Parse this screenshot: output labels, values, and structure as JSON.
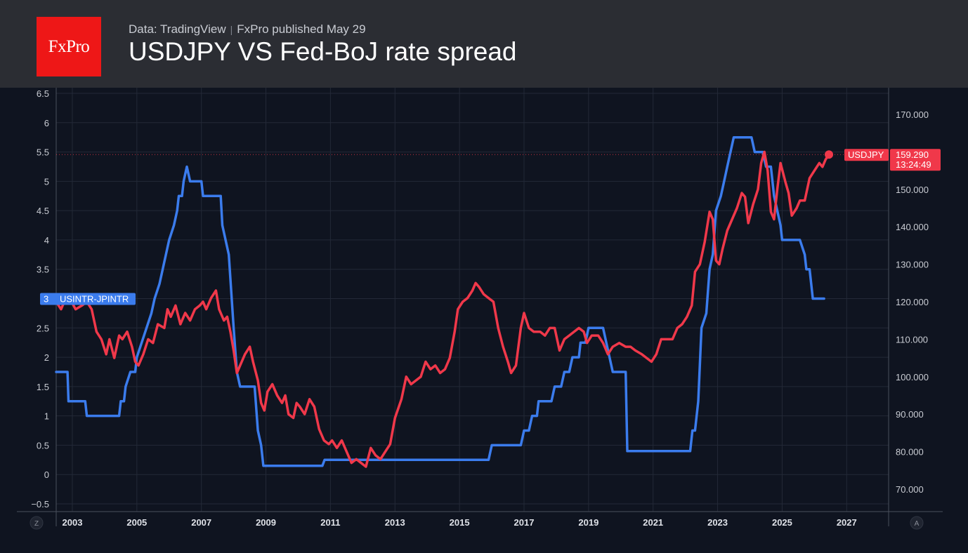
{
  "header": {
    "logo_text": "FxPro",
    "source": "Data: TradingView",
    "published": "FxPro published May 29",
    "title": "USDJPY VS Fed-BoJ rate spread"
  },
  "corner_buttons": {
    "left": "Z",
    "right": "A"
  },
  "colors": {
    "spread": "#3b7ced",
    "usdjpy": "#f0384a",
    "background": "#0f1420",
    "header": "#2b2d33",
    "logo": "#ee1717"
  },
  "chart_data": {
    "type": "line",
    "title": "USDJPY VS Fed-BoJ rate spread",
    "grid": true,
    "x_ticks": [
      "2003",
      "2005",
      "2007",
      "2009",
      "2011",
      "2013",
      "2015",
      "2017",
      "2019",
      "2021",
      "2023",
      "2025",
      "2027"
    ],
    "xlim": [
      2002.5,
      2028.3
    ],
    "left_axis": {
      "ticks": [
        "6.5",
        "6",
        "5.5",
        "5",
        "4.5",
        "4",
        "3.5",
        "3",
        "2.5",
        "2",
        "1.5",
        "1",
        "0.5",
        "0",
        "−0.5"
      ],
      "range": [
        -0.5,
        6.5
      ]
    },
    "right_axis": {
      "ticks": [
        "170.000",
        "160.000",
        "150.000",
        "140.000",
        "130.000",
        "120.000",
        "110.000",
        "100.000",
        "90.000",
        "80.000",
        "70.000"
      ],
      "range": [
        70,
        170
      ]
    },
    "series": [
      {
        "name": "USINTR-JPINTR",
        "axis": "left",
        "last_label": "3",
        "points": [
          [
            2002.5,
            1.75
          ],
          [
            2002.85,
            1.75
          ],
          [
            2002.88,
            1.25
          ],
          [
            2003.4,
            1.25
          ],
          [
            2003.45,
            1.0
          ],
          [
            2004.45,
            1.0
          ],
          [
            2004.5,
            1.25
          ],
          [
            2004.6,
            1.25
          ],
          [
            2004.65,
            1.5
          ],
          [
            2004.8,
            1.75
          ],
          [
            2004.95,
            1.75
          ],
          [
            2005.0,
            2.0
          ],
          [
            2005.15,
            2.25
          ],
          [
            2005.3,
            2.5
          ],
          [
            2005.45,
            2.75
          ],
          [
            2005.55,
            3.0
          ],
          [
            2005.7,
            3.25
          ],
          [
            2005.8,
            3.5
          ],
          [
            2005.9,
            3.75
          ],
          [
            2006.0,
            4.0
          ],
          [
            2006.15,
            4.25
          ],
          [
            2006.25,
            4.5
          ],
          [
            2006.3,
            4.75
          ],
          [
            2006.4,
            4.75
          ],
          [
            2006.45,
            5.0
          ],
          [
            2006.55,
            5.25
          ],
          [
            2006.65,
            5.0
          ],
          [
            2007.0,
            5.0
          ],
          [
            2007.05,
            4.75
          ],
          [
            2007.6,
            4.75
          ],
          [
            2007.65,
            4.25
          ],
          [
            2007.75,
            4.0
          ],
          [
            2007.85,
            3.75
          ],
          [
            2008.0,
            2.5
          ],
          [
            2008.1,
            1.75
          ],
          [
            2008.2,
            1.5
          ],
          [
            2008.65,
            1.5
          ],
          [
            2008.75,
            0.75
          ],
          [
            2008.85,
            0.5
          ],
          [
            2008.92,
            0.15
          ],
          [
            2010.75,
            0.15
          ],
          [
            2010.82,
            0.25
          ],
          [
            2015.9,
            0.25
          ],
          [
            2016.0,
            0.5
          ],
          [
            2016.9,
            0.5
          ],
          [
            2017.0,
            0.75
          ],
          [
            2017.15,
            0.75
          ],
          [
            2017.25,
            1.0
          ],
          [
            2017.4,
            1.0
          ],
          [
            2017.45,
            1.25
          ],
          [
            2017.85,
            1.25
          ],
          [
            2017.95,
            1.5
          ],
          [
            2018.15,
            1.5
          ],
          [
            2018.25,
            1.75
          ],
          [
            2018.4,
            1.75
          ],
          [
            2018.5,
            2.0
          ],
          [
            2018.7,
            2.0
          ],
          [
            2018.75,
            2.25
          ],
          [
            2018.9,
            2.25
          ],
          [
            2019.0,
            2.5
          ],
          [
            2019.45,
            2.5
          ],
          [
            2019.55,
            2.25
          ],
          [
            2019.65,
            2.0
          ],
          [
            2019.75,
            1.75
          ],
          [
            2020.15,
            1.75
          ],
          [
            2020.2,
            0.4
          ],
          [
            2022.15,
            0.4
          ],
          [
            2022.22,
            0.75
          ],
          [
            2022.3,
            0.75
          ],
          [
            2022.4,
            1.25
          ],
          [
            2022.5,
            2.5
          ],
          [
            2022.65,
            2.75
          ],
          [
            2022.75,
            3.5
          ],
          [
            2022.85,
            3.75
          ],
          [
            2022.95,
            4.5
          ],
          [
            2023.1,
            4.75
          ],
          [
            2023.2,
            5.0
          ],
          [
            2023.3,
            5.25
          ],
          [
            2023.4,
            5.5
          ],
          [
            2023.5,
            5.75
          ],
          [
            2024.05,
            5.75
          ],
          [
            2024.15,
            5.5
          ],
          [
            2024.4,
            5.5
          ],
          [
            2024.5,
            5.25
          ],
          [
            2024.65,
            5.25
          ],
          [
            2024.75,
            4.75
          ],
          [
            2024.85,
            4.5
          ],
          [
            2024.95,
            4.25
          ],
          [
            2025.0,
            4.0
          ],
          [
            2025.55,
            4.0
          ],
          [
            2025.7,
            3.75
          ],
          [
            2025.75,
            3.5
          ],
          [
            2025.85,
            3.5
          ],
          [
            2025.95,
            3.0
          ],
          [
            2026.3,
            3.0
          ]
        ]
      },
      {
        "name": "USDJPY",
        "axis": "right",
        "last_value": "159.290",
        "countdown": "13:24:49",
        "points": [
          [
            2002.5,
            120.0
          ],
          [
            2002.65,
            118.0
          ],
          [
            2002.85,
            122.0
          ],
          [
            2003.1,
            118.0
          ],
          [
            2003.3,
            119.0
          ],
          [
            2003.45,
            120.0
          ],
          [
            2003.6,
            118.0
          ],
          [
            2003.75,
            112.0
          ],
          [
            2003.9,
            110.0
          ],
          [
            2004.05,
            106.0
          ],
          [
            2004.15,
            110.0
          ],
          [
            2004.3,
            105.0
          ],
          [
            2004.45,
            111.0
          ],
          [
            2004.55,
            110.0
          ],
          [
            2004.7,
            112.0
          ],
          [
            2004.85,
            108.0
          ],
          [
            2004.95,
            104.0
          ],
          [
            2005.05,
            103.0
          ],
          [
            2005.2,
            106.0
          ],
          [
            2005.35,
            110.0
          ],
          [
            2005.5,
            109.0
          ],
          [
            2005.65,
            114.0
          ],
          [
            2005.85,
            113.0
          ],
          [
            2005.95,
            118.0
          ],
          [
            2006.05,
            116.0
          ],
          [
            2006.2,
            119.0
          ],
          [
            2006.35,
            114.0
          ],
          [
            2006.5,
            117.0
          ],
          [
            2006.65,
            115.0
          ],
          [
            2006.8,
            118.0
          ],
          [
            2006.95,
            119.0
          ],
          [
            2007.05,
            120.0
          ],
          [
            2007.15,
            118.0
          ],
          [
            2007.3,
            121.0
          ],
          [
            2007.45,
            123.0
          ],
          [
            2007.55,
            118.0
          ],
          [
            2007.7,
            115.0
          ],
          [
            2007.8,
            116.0
          ],
          [
            2007.9,
            112.0
          ],
          [
            2008.0,
            107.0
          ],
          [
            2008.1,
            101.0
          ],
          [
            2008.2,
            103.0
          ],
          [
            2008.35,
            106.0
          ],
          [
            2008.5,
            108.0
          ],
          [
            2008.6,
            104.0
          ],
          [
            2008.75,
            99.0
          ],
          [
            2008.85,
            93.0
          ],
          [
            2008.95,
            91.0
          ],
          [
            2009.05,
            96.0
          ],
          [
            2009.2,
            98.0
          ],
          [
            2009.35,
            95.0
          ],
          [
            2009.5,
            93.0
          ],
          [
            2009.6,
            95.0
          ],
          [
            2009.7,
            90.0
          ],
          [
            2009.85,
            89.0
          ],
          [
            2009.95,
            93.0
          ],
          [
            2010.05,
            92.0
          ],
          [
            2010.2,
            90.0
          ],
          [
            2010.35,
            94.0
          ],
          [
            2010.5,
            92.0
          ],
          [
            2010.65,
            86.0
          ],
          [
            2010.8,
            83.0
          ],
          [
            2010.95,
            82.0
          ],
          [
            2011.05,
            83.0
          ],
          [
            2011.2,
            81.0
          ],
          [
            2011.35,
            83.0
          ],
          [
            2011.5,
            80.0
          ],
          [
            2011.65,
            77.0
          ],
          [
            2011.8,
            78.0
          ],
          [
            2011.95,
            77.0
          ],
          [
            2012.1,
            76.0
          ],
          [
            2012.25,
            81.0
          ],
          [
            2012.4,
            79.0
          ],
          [
            2012.55,
            78.0
          ],
          [
            2012.7,
            80.0
          ],
          [
            2012.85,
            82.0
          ],
          [
            2013.0,
            89.0
          ],
          [
            2013.2,
            94.0
          ],
          [
            2013.35,
            100.0
          ],
          [
            2013.5,
            98.0
          ],
          [
            2013.65,
            99.0
          ],
          [
            2013.8,
            100.0
          ],
          [
            2013.95,
            104.0
          ],
          [
            2014.1,
            102.0
          ],
          [
            2014.25,
            103.0
          ],
          [
            2014.4,
            101.0
          ],
          [
            2014.55,
            102.0
          ],
          [
            2014.7,
            105.0
          ],
          [
            2014.85,
            112.0
          ],
          [
            2014.95,
            118.0
          ],
          [
            2015.1,
            120.0
          ],
          [
            2015.25,
            121.0
          ],
          [
            2015.4,
            123.0
          ],
          [
            2015.5,
            125.0
          ],
          [
            2015.6,
            124.0
          ],
          [
            2015.75,
            122.0
          ],
          [
            2015.9,
            121.0
          ],
          [
            2016.05,
            120.0
          ],
          [
            2016.2,
            113.0
          ],
          [
            2016.35,
            108.0
          ],
          [
            2016.5,
            104.0
          ],
          [
            2016.6,
            101.0
          ],
          [
            2016.75,
            103.0
          ],
          [
            2016.9,
            113.0
          ],
          [
            2017.0,
            117.0
          ],
          [
            2017.15,
            113.0
          ],
          [
            2017.3,
            112.0
          ],
          [
            2017.5,
            112.0
          ],
          [
            2017.65,
            111.0
          ],
          [
            2017.8,
            113.0
          ],
          [
            2017.95,
            113.0
          ],
          [
            2018.1,
            107.0
          ],
          [
            2018.25,
            110.0
          ],
          [
            2018.4,
            111.0
          ],
          [
            2018.55,
            112.0
          ],
          [
            2018.7,
            113.0
          ],
          [
            2018.85,
            112.0
          ],
          [
            2018.95,
            109.0
          ],
          [
            2019.1,
            111.0
          ],
          [
            2019.3,
            111.0
          ],
          [
            2019.45,
            109.0
          ],
          [
            2019.6,
            106.0
          ],
          [
            2019.75,
            108.0
          ],
          [
            2019.95,
            109.0
          ],
          [
            2020.15,
            108.0
          ],
          [
            2020.3,
            108.0
          ],
          [
            2020.45,
            107.0
          ],
          [
            2020.65,
            106.0
          ],
          [
            2020.8,
            105.0
          ],
          [
            2020.95,
            104.0
          ],
          [
            2021.1,
            106.0
          ],
          [
            2021.25,
            110.0
          ],
          [
            2021.45,
            110.0
          ],
          [
            2021.6,
            110.0
          ],
          [
            2021.75,
            113.0
          ],
          [
            2021.9,
            114.0
          ],
          [
            2022.05,
            116.0
          ],
          [
            2022.2,
            119.0
          ],
          [
            2022.3,
            128.0
          ],
          [
            2022.45,
            130.0
          ],
          [
            2022.6,
            136.0
          ],
          [
            2022.75,
            144.0
          ],
          [
            2022.85,
            142.0
          ],
          [
            2022.95,
            131.0
          ],
          [
            2023.05,
            130.0
          ],
          [
            2023.15,
            134.0
          ],
          [
            2023.3,
            139.0
          ],
          [
            2023.45,
            142.0
          ],
          [
            2023.6,
            145.0
          ],
          [
            2023.75,
            149.0
          ],
          [
            2023.85,
            148.0
          ],
          [
            2023.95,
            141.0
          ],
          [
            2024.1,
            146.0
          ],
          [
            2024.25,
            150.0
          ],
          [
            2024.35,
            157.0
          ],
          [
            2024.45,
            160.0
          ],
          [
            2024.55,
            155.0
          ],
          [
            2024.65,
            144.0
          ],
          [
            2024.75,
            142.0
          ],
          [
            2024.85,
            150.0
          ],
          [
            2024.95,
            157.0
          ],
          [
            2025.1,
            152.0
          ],
          [
            2025.2,
            149.0
          ],
          [
            2025.3,
            143.0
          ],
          [
            2025.45,
            145.0
          ],
          [
            2025.55,
            147.0
          ],
          [
            2025.7,
            147.0
          ],
          [
            2025.85,
            153.0
          ],
          [
            2026.0,
            155.0
          ],
          [
            2026.15,
            157.0
          ],
          [
            2026.25,
            156.0
          ],
          [
            2026.35,
            158.0
          ],
          [
            2026.45,
            159.29
          ]
        ]
      }
    ]
  }
}
